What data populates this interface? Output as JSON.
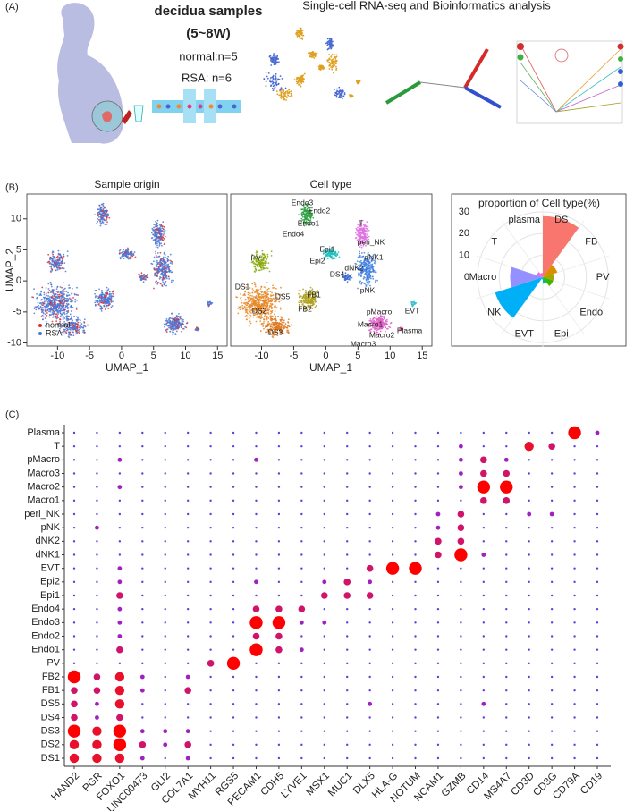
{
  "panel_a": {
    "label": "(A)",
    "sample_title": "decidua samples",
    "sample_weeks": "(5~8W)",
    "normal_n": "normal:n=5",
    "rsa_n": "RSA: n=6",
    "analysis_title": "Single-cell RNA-seq and Bioinformatics analysis"
  },
  "panel_b_label": "(B)",
  "panel_c_label": "(C)",
  "chart_data": [
    {
      "type": "scatter",
      "title": "Sample origin",
      "x_label": "UMAP_1",
      "y_label": "UMAP_2",
      "xlim": [
        -14.8,
        16.5
      ],
      "ylim": [
        -10.5,
        14
      ],
      "xticks": [
        -10,
        -5,
        0,
        5,
        10,
        15
      ],
      "yticks": [
        -10,
        -5,
        0,
        5,
        10
      ],
      "series": [
        {
          "name": "normal",
          "color": "#e0302a"
        },
        {
          "name": "RSA",
          "color": "#4a78d8"
        }
      ]
    },
    {
      "type": "scatter",
      "title": "Cell type",
      "x_label": "UMAP_1",
      "xlim": [
        -14.8,
        16.5
      ],
      "xticks": [
        -10,
        -5,
        0,
        5,
        10,
        15
      ],
      "cluster_labels": [
        "Endo3",
        "Endo2",
        "Endo1",
        "Endo4",
        "T",
        "peri_NK",
        "dNK1",
        "Epi1",
        "Epi2",
        "dNK2",
        "DS4",
        "PV",
        "FB1",
        "DS1",
        "DS5",
        "FB2",
        "DS2",
        "DS3",
        "pNK",
        "EVT",
        "pMacro",
        "Macro1",
        "Macro2",
        "Plasma",
        "Macro3"
      ]
    },
    {
      "type": "polar_bar",
      "title": "proportion of Cell type(%)",
      "categories": [
        "DS",
        "FB",
        "PV",
        "Endo",
        "Epi",
        "EVT",
        "NK",
        "Macro",
        "T",
        "plasma"
      ],
      "values": [
        28,
        7,
        5,
        5,
        3,
        1,
        23,
        15,
        3,
        2
      ],
      "colors": [
        "#F8766D",
        "#D89000",
        "#A3A500",
        "#39B600",
        "#00BF7D",
        "#00BFC4",
        "#00B0F6",
        "#9590FF",
        "#E76BF3",
        "#FF62BC"
      ],
      "rlim": [
        0,
        32
      ],
      "rticks": [
        0,
        10,
        20,
        30
      ]
    },
    {
      "type": "dot",
      "categories": [
        "HAND2",
        "PGR",
        "FOXO1",
        "LINC00473",
        "GLI2",
        "COL7A1",
        "MYH11",
        "RGS5",
        "PECAM1",
        "CDH5",
        "LYVE1",
        "MSX1",
        "MUC1",
        "DLX5",
        "HLA-G",
        "NOTUM",
        "NCAM1",
        "GZMB",
        "CD14",
        "MS4A7",
        "CD3D",
        "CD3G",
        "CD79A",
        "CD19"
      ],
      "rows": [
        "Plasma",
        "T",
        "pMacro",
        "Macro3",
        "Macro2",
        "Macro1",
        "peri_NK",
        "pNK",
        "dNK2",
        "dNK1",
        "EVT",
        "Epi2",
        "Epi1",
        "Endo4",
        "Endo3",
        "Endo2",
        "Endo1",
        "PV",
        "FB2",
        "FB1",
        "DS5",
        "DS4",
        "DS3",
        "DS2",
        "DS1"
      ],
      "values": [
        [
          1,
          1,
          1,
          1,
          1,
          1,
          1,
          1,
          1,
          1,
          1,
          1,
          1,
          1,
          1,
          1,
          1,
          1,
          1,
          1,
          1,
          1,
          5,
          2
        ],
        [
          1,
          1,
          1,
          1,
          1,
          1,
          1,
          1,
          1,
          1,
          1,
          1,
          1,
          1,
          1,
          1,
          1,
          2,
          1,
          1,
          4,
          3,
          1,
          1
        ],
        [
          1,
          1,
          2,
          1,
          1,
          1,
          1,
          1,
          2,
          1,
          1,
          1,
          1,
          1,
          1,
          1,
          1,
          2,
          3,
          2,
          1,
          1,
          1,
          1
        ],
        [
          1,
          1,
          1,
          1,
          1,
          1,
          1,
          1,
          1,
          1,
          1,
          1,
          1,
          1,
          1,
          1,
          1,
          2,
          3,
          3,
          1,
          1,
          1,
          1
        ],
        [
          1,
          1,
          2,
          1,
          1,
          1,
          1,
          1,
          1,
          1,
          1,
          1,
          1,
          1,
          1,
          1,
          1,
          2,
          5,
          5,
          1,
          1,
          1,
          1
        ],
        [
          1,
          1,
          1,
          1,
          1,
          1,
          1,
          1,
          1,
          1,
          1,
          1,
          1,
          1,
          1,
          1,
          1,
          1,
          3,
          3,
          1,
          1,
          1,
          1
        ],
        [
          1,
          1,
          1,
          1,
          1,
          1,
          1,
          1,
          1,
          1,
          1,
          1,
          1,
          1,
          1,
          1,
          2,
          3,
          1,
          1,
          2,
          2,
          1,
          1
        ],
        [
          1,
          2,
          1,
          1,
          1,
          1,
          1,
          1,
          1,
          1,
          1,
          1,
          1,
          1,
          1,
          1,
          2,
          3,
          1,
          1,
          1,
          1,
          1,
          1
        ],
        [
          1,
          1,
          1,
          1,
          1,
          1,
          1,
          1,
          1,
          1,
          1,
          1,
          1,
          1,
          1,
          1,
          3,
          3,
          1,
          1,
          1,
          1,
          1,
          1
        ],
        [
          1,
          1,
          1,
          1,
          1,
          1,
          1,
          1,
          1,
          1,
          1,
          1,
          1,
          1,
          1,
          1,
          3,
          5,
          2,
          1,
          1,
          1,
          1,
          1
        ],
        [
          1,
          1,
          2,
          1,
          1,
          1,
          1,
          1,
          1,
          1,
          1,
          1,
          1,
          3,
          5,
          5,
          1,
          1,
          1,
          1,
          1,
          1,
          1,
          1
        ],
        [
          1,
          1,
          2,
          1,
          1,
          1,
          1,
          1,
          2,
          1,
          1,
          2,
          3,
          2,
          1,
          1,
          1,
          1,
          1,
          1,
          1,
          1,
          1,
          1
        ],
        [
          1,
          1,
          3,
          1,
          1,
          1,
          1,
          1,
          1,
          1,
          1,
          3,
          3,
          3,
          1,
          1,
          1,
          1,
          1,
          1,
          1,
          1,
          1,
          1
        ],
        [
          1,
          1,
          2,
          1,
          1,
          1,
          1,
          1,
          3,
          3,
          3,
          1,
          1,
          1,
          1,
          1,
          1,
          1,
          1,
          1,
          1,
          1,
          1,
          1
        ],
        [
          1,
          1,
          2,
          1,
          1,
          1,
          1,
          1,
          5,
          5,
          2,
          2,
          1,
          1,
          1,
          1,
          1,
          1,
          1,
          1,
          1,
          1,
          1,
          1
        ],
        [
          1,
          1,
          2,
          1,
          1,
          1,
          1,
          1,
          3,
          3,
          1,
          1,
          1,
          1,
          1,
          1,
          1,
          1,
          1,
          1,
          1,
          1,
          1,
          1
        ],
        [
          1,
          1,
          3,
          1,
          1,
          1,
          1,
          1,
          5,
          3,
          2,
          1,
          1,
          1,
          1,
          1,
          1,
          1,
          1,
          1,
          1,
          1,
          1,
          1
        ],
        [
          1,
          1,
          1,
          1,
          1,
          1,
          3,
          5,
          1,
          1,
          1,
          1,
          1,
          1,
          1,
          1,
          1,
          1,
          1,
          1,
          1,
          1,
          1,
          1
        ],
        [
          5,
          3,
          4,
          2,
          1,
          2,
          1,
          1,
          1,
          1,
          1,
          1,
          1,
          1,
          1,
          1,
          1,
          1,
          1,
          1,
          1,
          1,
          1,
          1
        ],
        [
          3,
          3,
          4,
          2,
          1,
          3,
          1,
          1,
          1,
          1,
          1,
          1,
          1,
          1,
          1,
          1,
          1,
          1,
          1,
          1,
          1,
          1,
          1,
          1
        ],
        [
          3,
          2,
          4,
          1,
          1,
          1,
          1,
          1,
          1,
          1,
          1,
          1,
          1,
          2,
          1,
          1,
          1,
          1,
          2,
          1,
          1,
          1,
          1,
          1
        ],
        [
          3,
          2,
          3,
          1,
          1,
          1,
          1,
          1,
          1,
          1,
          1,
          1,
          1,
          1,
          1,
          1,
          1,
          1,
          1,
          1,
          1,
          1,
          1,
          1
        ],
        [
          5,
          4,
          5,
          2,
          2,
          2,
          1,
          1,
          1,
          1,
          1,
          1,
          1,
          1,
          1,
          1,
          1,
          1,
          1,
          1,
          1,
          1,
          1,
          1
        ],
        [
          4,
          4,
          5,
          3,
          2,
          3,
          1,
          1,
          1,
          1,
          1,
          1,
          1,
          1,
          1,
          1,
          1,
          1,
          1,
          1,
          1,
          1,
          1,
          1
        ],
        [
          4,
          4,
          4,
          2,
          1,
          2,
          1,
          1,
          1,
          1,
          1,
          1,
          1,
          1,
          1,
          1,
          1,
          1,
          1,
          1,
          1,
          1,
          1,
          1
        ]
      ]
    }
  ]
}
